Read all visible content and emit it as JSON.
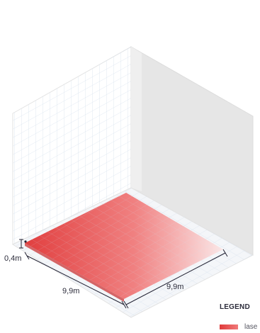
{
  "dimensions": {
    "height_label": "0,4m",
    "width_left_label": "9,9m",
    "width_right_label": "9,9m"
  },
  "legend": {
    "title": "LEGEND",
    "items": [
      {
        "label": "lase",
        "color": "#e03a3a"
      }
    ]
  },
  "colors": {
    "floor": "#f4f6f9",
    "left_wall": "#ffffff",
    "right_wall": "#e6e6e6",
    "grid": "#d6e1ee",
    "area_start": "#e03535",
    "area_end": "#fbe1e1",
    "dimension_line": "#222233"
  }
}
